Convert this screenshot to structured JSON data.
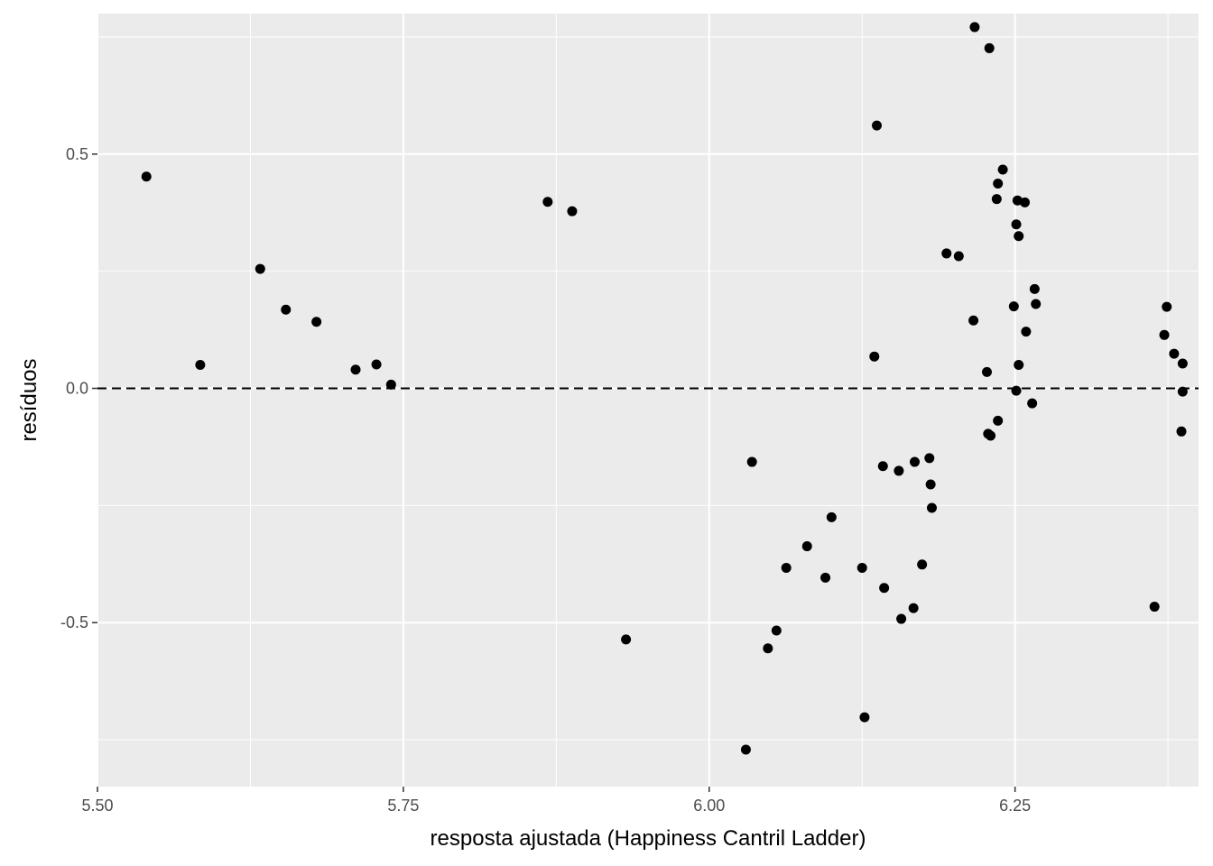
{
  "chart_data": {
    "type": "scatter",
    "xlabel": "resposta ajustada (Happiness Cantril Ladder)",
    "ylabel": "resíduos",
    "xlim": [
      5.5,
      6.4
    ],
    "ylim": [
      -0.85,
      0.8
    ],
    "x_ticks": [
      {
        "value": 5.5,
        "label": "5.50"
      },
      {
        "value": 5.75,
        "label": "5.75"
      },
      {
        "value": 6.0,
        "label": "6.00"
      },
      {
        "value": 6.25,
        "label": "6.25"
      }
    ],
    "y_ticks": [
      {
        "value": -0.5,
        "label": "-0.5"
      },
      {
        "value": 0.0,
        "label": "0.0"
      },
      {
        "value": 0.5,
        "label": "0.5"
      }
    ],
    "reference_line": {
      "y": 0,
      "style": "dashed"
    },
    "grid": true,
    "colors": {
      "panel": "#ebebeb",
      "grid": "#ffffff",
      "point": "#000000"
    },
    "points": [
      {
        "x": 5.54,
        "y": 0.452
      },
      {
        "x": 5.584,
        "y": 0.05
      },
      {
        "x": 5.633,
        "y": 0.255
      },
      {
        "x": 5.654,
        "y": 0.168
      },
      {
        "x": 5.679,
        "y": 0.142
      },
      {
        "x": 5.711,
        "y": 0.04
      },
      {
        "x": 5.728,
        "y": 0.051
      },
      {
        "x": 5.74,
        "y": 0.008
      },
      {
        "x": 5.868,
        "y": 0.398
      },
      {
        "x": 5.888,
        "y": 0.378
      },
      {
        "x": 5.932,
        "y": -0.536
      },
      {
        "x": 6.03,
        "y": -0.771
      },
      {
        "x": 6.035,
        "y": -0.157
      },
      {
        "x": 6.048,
        "y": -0.555
      },
      {
        "x": 6.055,
        "y": -0.517
      },
      {
        "x": 6.063,
        "y": -0.383
      },
      {
        "x": 6.08,
        "y": -0.337
      },
      {
        "x": 6.095,
        "y": -0.404
      },
      {
        "x": 6.1,
        "y": -0.275
      },
      {
        "x": 6.125,
        "y": -0.383
      },
      {
        "x": 6.127,
        "y": -0.702
      },
      {
        "x": 6.135,
        "y": 0.068
      },
      {
        "x": 6.137,
        "y": 0.561
      },
      {
        "x": 6.142,
        "y": -0.166
      },
      {
        "x": 6.143,
        "y": -0.426
      },
      {
        "x": 6.155,
        "y": -0.176
      },
      {
        "x": 6.157,
        "y": -0.492
      },
      {
        "x": 6.167,
        "y": -0.469
      },
      {
        "x": 6.168,
        "y": -0.157
      },
      {
        "x": 6.174,
        "y": -0.376
      },
      {
        "x": 6.18,
        "y": -0.149
      },
      {
        "x": 6.181,
        "y": -0.205
      },
      {
        "x": 6.182,
        "y": -0.255
      },
      {
        "x": 6.194,
        "y": 0.288
      },
      {
        "x": 6.204,
        "y": 0.282
      },
      {
        "x": 6.216,
        "y": 0.145
      },
      {
        "x": 6.217,
        "y": 0.771
      },
      {
        "x": 6.227,
        "y": 0.035
      },
      {
        "x": 6.228,
        "y": -0.097
      },
      {
        "x": 6.229,
        "y": 0.726
      },
      {
        "x": 6.23,
        "y": -0.101
      },
      {
        "x": 6.235,
        "y": 0.404
      },
      {
        "x": 6.236,
        "y": -0.069
      },
      {
        "x": 6.236,
        "y": 0.437
      },
      {
        "x": 6.24,
        "y": 0.467
      },
      {
        "x": 6.249,
        "y": 0.175
      },
      {
        "x": 6.251,
        "y": -0.005
      },
      {
        "x": 6.251,
        "y": 0.35
      },
      {
        "x": 6.252,
        "y": 0.401
      },
      {
        "x": 6.253,
        "y": 0.05
      },
      {
        "x": 6.253,
        "y": 0.325
      },
      {
        "x": 6.258,
        "y": 0.397
      },
      {
        "x": 6.259,
        "y": 0.121
      },
      {
        "x": 6.264,
        "y": -0.032
      },
      {
        "x": 6.266,
        "y": 0.212
      },
      {
        "x": 6.267,
        "y": 0.18
      },
      {
        "x": 6.364,
        "y": -0.466
      },
      {
        "x": 6.372,
        "y": 0.114
      },
      {
        "x": 6.374,
        "y": 0.174
      },
      {
        "x": 6.38,
        "y": 0.074
      },
      {
        "x": 6.386,
        "y": -0.092
      },
      {
        "x": 6.387,
        "y": 0.053
      },
      {
        "x": 6.387,
        "y": -0.007
      }
    ]
  }
}
